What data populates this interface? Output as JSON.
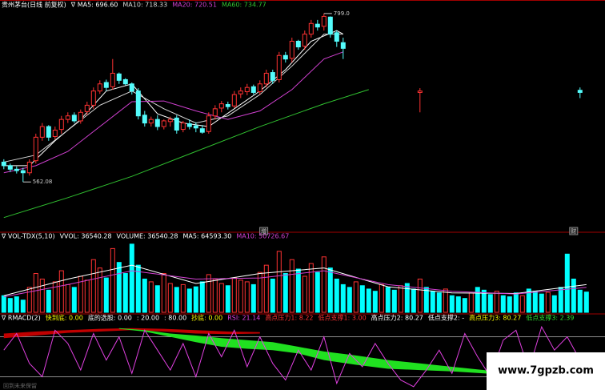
{
  "chart_data": [
    {
      "type": "candlestick",
      "title": "贵州茅台(日线 前复权)",
      "up_color": "#ff3232",
      "down_color": "#54fcfc",
      "xlim": [
        -0.6,
        93.9
      ],
      "ylim": [
        497,
        818
      ],
      "x": [
        0,
        1,
        2,
        3,
        4,
        5,
        6,
        7,
        8,
        9,
        10,
        11,
        12,
        13,
        14,
        15,
        16,
        17,
        18,
        19,
        20,
        21,
        22,
        23,
        24,
        25,
        26,
        27,
        28,
        29,
        30,
        31,
        32,
        33,
        34,
        35,
        36,
        37,
        38,
        39,
        40,
        41,
        42,
        43,
        44,
        45,
        46,
        47,
        48,
        49,
        50,
        51,
        52,
        53,
        65,
        90
      ],
      "open": [
        590,
        585,
        580,
        578,
        575,
        592,
        625,
        640,
        626,
        636,
        650,
        656,
        648,
        661,
        670,
        690,
        702,
        696,
        714,
        706,
        700,
        690,
        656,
        645,
        650,
        640,
        647,
        652,
        636,
        644,
        641,
        637,
        633,
        655,
        666,
        671,
        669,
        686,
        689,
        696,
        689,
        700,
        716,
        706,
        740,
        736,
        760,
        753,
        770,
        784,
        781,
        794,
        772,
        758,
        688,
        691
      ],
      "high": [
        594,
        588,
        584,
        582,
        594,
        630,
        645,
        642,
        640,
        655,
        660,
        660,
        664,
        675,
        695,
        705,
        706,
        735,
        716,
        708,
        702,
        694,
        662,
        654,
        656,
        650,
        654,
        656,
        648,
        650,
        646,
        642,
        660,
        670,
        676,
        675,
        690,
        695,
        700,
        699,
        705,
        720,
        720,
        745,
        745,
        765,
        762,
        775,
        790,
        790,
        799,
        795,
        775,
        765,
        694,
        695
      ],
      "low": [
        580,
        576,
        574,
        562.08,
        571,
        588,
        620,
        620,
        622,
        630,
        645,
        645,
        644,
        656,
        665,
        686,
        690,
        692,
        700,
        698,
        685,
        650,
        640,
        640,
        635,
        636,
        640,
        630,
        632,
        636,
        632,
        630,
        630,
        650,
        660,
        664,
        666,
        680,
        684,
        685,
        685,
        695,
        700,
        702,
        730,
        730,
        748,
        748,
        765,
        775,
        775,
        765,
        752,
        735,
        660,
        680
      ],
      "close": [
        585,
        580,
        578,
        575,
        590,
        625,
        640,
        625,
        635,
        650,
        655,
        648,
        660,
        670,
        690,
        700,
        695,
        715,
        705,
        700,
        690,
        655,
        645,
        650,
        640,
        648,
        650,
        635,
        645,
        640,
        638,
        632,
        655,
        665,
        672,
        668,
        685,
        690,
        695,
        688,
        700,
        715,
        705,
        740,
        735,
        760,
        752,
        770,
        785,
        780,
        795,
        770,
        760,
        750,
        690,
        688
      ],
      "series": [
        {
          "name": "∇ MA5: 696.60",
          "color": "#ffffff",
          "x": [
            0,
            4,
            8,
            12,
            16,
            20,
            24,
            28,
            32,
            36,
            40,
            44,
            48,
            52,
            53
          ],
          "values": [
            585,
            585,
            620,
            650,
            690,
            700,
            658,
            645,
            640,
            665,
            690,
            720,
            760,
            775,
            770
          ]
        },
        {
          "name": "MA10: 718.33",
          "color": "#d8d8d8",
          "x": [
            0,
            5,
            10,
            15,
            20,
            25,
            30,
            35,
            40,
            45,
            50,
            53
          ],
          "values": [
            590,
            600,
            635,
            670,
            690,
            665,
            645,
            655,
            685,
            725,
            770,
            770
          ]
        },
        {
          "name": "MA20: 720.51",
          "color": "#d040d0",
          "x": [
            0,
            5,
            10,
            15,
            20,
            25,
            30,
            35,
            40,
            45,
            50,
            53
          ],
          "values": [
            575,
            585,
            605,
            640,
            675,
            676,
            662,
            650,
            662,
            692,
            735,
            745
          ]
        },
        {
          "name": "MA60: 734.77",
          "color": "#30c030",
          "x": [
            0,
            10,
            20,
            30,
            40,
            50,
            57
          ],
          "values": [
            512,
            540,
            570,
            605,
            640,
            672,
            692
          ]
        }
      ],
      "annotations": [
        {
          "text": "799.0",
          "x": 50,
          "y": 799
        },
        {
          "text": "562.08",
          "x": 3,
          "y": 562.08
        }
      ],
      "markers": [
        {
          "text": "增",
          "x": 40.6
        },
        {
          "text": "财",
          "x": 89
        }
      ]
    },
    {
      "type": "bar",
      "title": "∇ VOL-TDX(5,10)",
      "xlim": [
        -0.6,
        93.9
      ],
      "ylim": [
        0,
        130000
      ],
      "texts": [
        {
          "text": "VVOL: 36540.28",
          "color": "#ffffff"
        },
        {
          "text": "VOLUME: 36540.28",
          "color": "#ffffff"
        }
      ],
      "values": [
        30000,
        25000,
        28000,
        22000,
        45000,
        70000,
        60000,
        40000,
        55000,
        75000,
        50000,
        45000,
        65000,
        58000,
        95000,
        80000,
        62000,
        115000,
        90000,
        70000,
        123000,
        85000,
        60000,
        55000,
        48000,
        70000,
        52000,
        45000,
        50000,
        42000,
        46000,
        55000,
        68000,
        60000,
        52000,
        48000,
        62000,
        58000,
        55000,
        50000,
        72000,
        85000,
        60000,
        110000,
        70000,
        95000,
        78000,
        65000,
        88000,
        72000,
        100000,
        80000,
        60000,
        50000,
        45000,
        55000,
        48000,
        42000,
        38000,
        50000,
        45000,
        40000,
        48000,
        52000,
        42000,
        60000,
        45000,
        38000,
        35000,
        42000,
        30000,
        28000,
        25000,
        35000,
        45000,
        40000,
        32000,
        38000,
        30000,
        28000,
        35000,
        30000,
        42000,
        38000,
        33000,
        36000,
        30000,
        45000,
        105000,
        60000,
        40000,
        36540.28
      ],
      "colors": [
        "#0ff",
        "#0ff",
        "#0ff",
        "#0ff",
        "#f33",
        "#f33",
        "#f33",
        "#0ff",
        "#f33",
        "#f33",
        "#f33",
        "#0ff",
        "#f33",
        "#f33",
        "#f33",
        "#f33",
        "#0ff",
        "#f33",
        "#0ff",
        "#0ff",
        "#0ff",
        "#0ff",
        "#0ff",
        "#f33",
        "#0ff",
        "#f33",
        "#f33",
        "#0ff",
        "#f33",
        "#0ff",
        "#0ff",
        "#0ff",
        "#f33",
        "#f33",
        "#f33",
        "#0ff",
        "#f33",
        "#f33",
        "#f33",
        "#0ff",
        "#f33",
        "#f33",
        "#0ff",
        "#f33",
        "#0ff",
        "#f33",
        "#0ff",
        "#f33",
        "#f33",
        "#0ff",
        "#f33",
        "#0ff",
        "#0ff",
        "#0ff",
        "#0ff",
        "#f33",
        "#0ff",
        "#0ff",
        "#0ff",
        "#f33",
        "#0ff",
        "#0ff",
        "#f33",
        "#0ff",
        "#0ff",
        "#f33",
        "#0ff",
        "#0ff",
        "#0ff",
        "#f33",
        "#0ff",
        "#0ff",
        "#0ff",
        "#f33",
        "#0ff",
        "#0ff",
        "#0ff",
        "#f33",
        "#0ff",
        "#0ff",
        "#0ff",
        "#f33",
        "#0ff",
        "#0ff",
        "#0ff",
        "#f33",
        "#0ff",
        "#0ff",
        "#0ff",
        "#0ff",
        "#0ff",
        "#0ff"
      ],
      "series": [
        {
          "name": "MA5: 64593.30",
          "color": "#ffffff",
          "x": [
            0,
            10,
            20,
            30,
            40,
            50,
            60,
            70,
            80,
            91
          ],
          "values": [
            30000,
            60000,
            85000,
            52000,
            70000,
            80000,
            46000,
            35000,
            34000,
            50000
          ]
        },
        {
          "name": "MA10: 50726.67",
          "color": "#d040d0",
          "x": [
            0,
            10,
            20,
            30,
            40,
            50,
            60,
            70,
            80,
            91
          ],
          "values": [
            28000,
            50000,
            75000,
            60000,
            62000,
            75000,
            50000,
            38000,
            33000,
            45000
          ]
        }
      ]
    },
    {
      "type": "line",
      "title": "∇ RMACD(2)",
      "xlim": [
        -0.6,
        93.9
      ],
      "ylim": [
        0,
        100
      ],
      "levels": [
        20,
        80
      ],
      "texts": [
        {
          "text": "快到底: 0.00",
          "color": "#ffff00"
        },
        {
          "text": "底的选股: 0.00",
          "color": "#ffffff"
        },
        {
          "text": ": 20.00",
          "color": "#ffffff"
        },
        {
          "text": ": 80.00",
          "color": "#ffffff"
        },
        {
          "text": "抄底: 0.00",
          "color": "#ffff00"
        },
        {
          "text": "RSI: 21.14",
          "color": "#e040e0"
        },
        {
          "text": "高点压力1: 8.22",
          "color": "#ff3232"
        },
        {
          "text": "低点支撑1: 3.00",
          "color": "#ff3232"
        },
        {
          "text": "高点压力2: 80.27",
          "color": "#ffffff"
        },
        {
          "text": "低点支撑2: -",
          "color": "#ffffff"
        },
        {
          "text": "高点压力3: 80.27",
          "color": "#ffff00"
        },
        {
          "text": "低点支撑3: 2.39",
          "color": "#30e030"
        }
      ],
      "series": [
        {
          "color": "#e040e0",
          "x": [
            0,
            2,
            4,
            6,
            8,
            10,
            12,
            14,
            16,
            18,
            20,
            22,
            24,
            26,
            28,
            30,
            32,
            34,
            36,
            38,
            40,
            42,
            44,
            46,
            48,
            50,
            52,
            54,
            56,
            58,
            60,
            62,
            64,
            66,
            68,
            70,
            72,
            74,
            76,
            78,
            80,
            82,
            84,
            86,
            88,
            90
          ],
          "values": [
            60,
            85,
            40,
            20,
            90,
            70,
            30,
            85,
            45,
            80,
            25,
            90,
            60,
            30,
            70,
            20,
            85,
            50,
            90,
            35,
            80,
            40,
            15,
            60,
            30,
            80,
            10,
            55,
            35,
            70,
            40,
            15,
            5,
            30,
            60,
            25,
            85,
            50,
            20,
            75,
            90,
            30,
            95,
            60,
            80,
            45
          ]
        }
      ],
      "bands": [
        {
          "color": "#c00000",
          "x": [
            0,
            5,
            10,
            15,
            20,
            25,
            30,
            35,
            40
          ],
          "values": [
            85,
            88,
            90,
            92,
            93,
            92,
            90,
            88,
            87
          ],
          "base": [
            78,
            82,
            86,
            88,
            90,
            88,
            85,
            84,
            85
          ]
        },
        {
          "color": "#20e020",
          "x": [
            18,
            22,
            26,
            30,
            34,
            38,
            42,
            46,
            50,
            55,
            60,
            65,
            70,
            75,
            80,
            85,
            90
          ],
          "values": [
            93,
            90,
            85,
            82,
            78,
            75,
            72,
            65,
            58,
            52,
            45,
            40,
            35,
            30,
            25,
            22,
            20
          ],
          "base": [
            92,
            88,
            80,
            72,
            65,
            62,
            60,
            55,
            45,
            38,
            32,
            30,
            28,
            25,
            22,
            20,
            18
          ]
        }
      ]
    }
  ],
  "watermark": "www.7gpzb.com",
  "footer": "回到未来保留"
}
